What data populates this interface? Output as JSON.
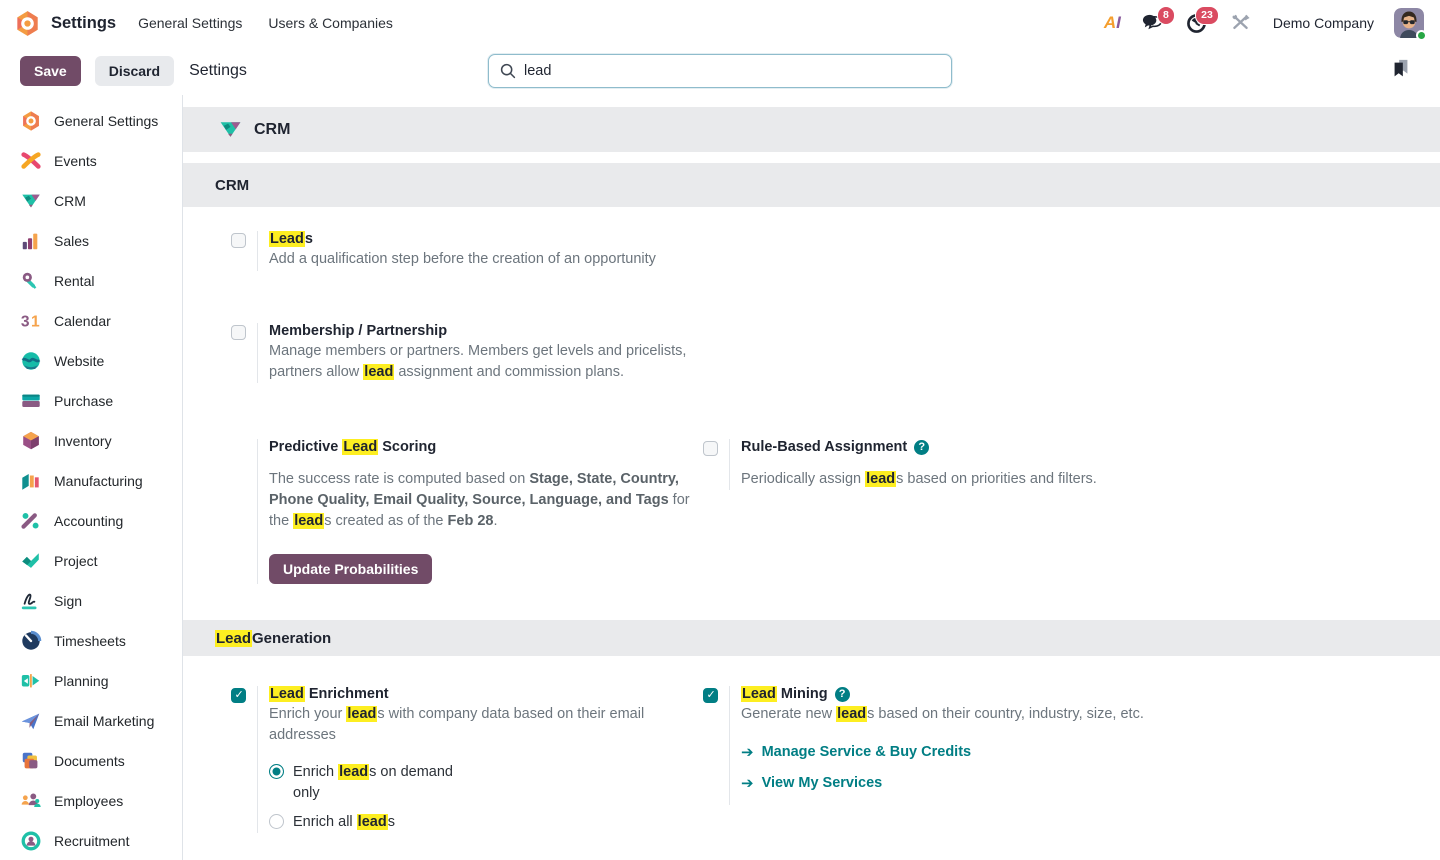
{
  "navbar": {
    "app_name": "Settings",
    "menu_items": [
      "General Settings",
      "Users & Companies"
    ],
    "ai_label": "AI",
    "messages_badge": "8",
    "activities_badge": "23",
    "company": "Demo Company"
  },
  "control_panel": {
    "save_label": "Save",
    "discard_label": "Discard",
    "breadcrumb": "Settings",
    "search_value": "lead"
  },
  "colors": {
    "accent": "#714B67",
    "teal": "#017e84",
    "highlight": "#fdee21",
    "badge_red": "#da4b61",
    "band_gray": "#e9eaec"
  },
  "sidebar": {
    "items": [
      {
        "label": "General Settings",
        "icon": "general-settings"
      },
      {
        "label": "Events",
        "icon": "events"
      },
      {
        "label": "CRM",
        "icon": "crm"
      },
      {
        "label": "Sales",
        "icon": "sales"
      },
      {
        "label": "Rental",
        "icon": "rental"
      },
      {
        "label": "Calendar",
        "icon": "calendar"
      },
      {
        "label": "Website",
        "icon": "website"
      },
      {
        "label": "Purchase",
        "icon": "purchase"
      },
      {
        "label": "Inventory",
        "icon": "inventory"
      },
      {
        "label": "Manufacturing",
        "icon": "manufacturing"
      },
      {
        "label": "Accounting",
        "icon": "accounting"
      },
      {
        "label": "Project",
        "icon": "project"
      },
      {
        "label": "Sign",
        "icon": "sign"
      },
      {
        "label": "Timesheets",
        "icon": "timesheets"
      },
      {
        "label": "Planning",
        "icon": "planning"
      },
      {
        "label": "Email Marketing",
        "icon": "email-marketing"
      },
      {
        "label": "Documents",
        "icon": "documents"
      },
      {
        "label": "Employees",
        "icon": "employees"
      },
      {
        "label": "Recruitment",
        "icon": "recruitment"
      }
    ]
  },
  "main": {
    "app_header_title": "CRM",
    "crm_section_title": "CRM",
    "leadgen_header": [
      {
        "t": "Lead",
        "hl": true
      },
      {
        "t": " Generation"
      }
    ],
    "leads": {
      "title": [
        {
          "t": "Lead",
          "hl": true
        },
        {
          "t": "s"
        }
      ],
      "desc": [
        {
          "t": "Add a qualification step before the creation of an opportunity"
        }
      ],
      "checked": false
    },
    "membership": {
      "title": [
        {
          "t": "Membership / Partnership"
        }
      ],
      "desc": [
        {
          "t": "Manage members or partners. Members get levels and pricelists, partners allow "
        },
        {
          "t": "lead",
          "hl": true
        },
        {
          "t": " assignment and commission plans."
        }
      ],
      "checked": false
    },
    "predictive": {
      "title": [
        {
          "t": "Predictive "
        },
        {
          "t": "Lead",
          "hl": true
        },
        {
          "t": " Scoring"
        }
      ],
      "desc": [
        {
          "t": "The success rate is computed based on "
        },
        {
          "t": "Stage, State, Country, Phone Quality, Email Quality, Source, Language, and Tags",
          "b": true
        },
        {
          "t": " for the "
        },
        {
          "t": "lead",
          "hl": true
        },
        {
          "t": "s created as of the "
        },
        {
          "t": "Feb 28",
          "b": true
        },
        {
          "t": "."
        }
      ],
      "button_label": "Update Probabilities"
    },
    "rule_based": {
      "title": [
        {
          "t": "Rule-Based Assignment"
        }
      ],
      "desc": [
        {
          "t": "Periodically assign "
        },
        {
          "t": "lead",
          "hl": true
        },
        {
          "t": "s based on priorities and filters."
        }
      ],
      "checked": false,
      "has_help": true
    },
    "enrichment": {
      "title": [
        {
          "t": "Lead",
          "hl": true
        },
        {
          "t": " Enrichment"
        }
      ],
      "desc": [
        {
          "t": "Enrich your "
        },
        {
          "t": "lead",
          "hl": true
        },
        {
          "t": "s with company data based on their email addresses"
        }
      ],
      "checked": true,
      "radio_on_demand": [
        {
          "t": "Enrich "
        },
        {
          "t": "lead",
          "hl": true
        },
        {
          "t": "s on demand only"
        }
      ],
      "radio_all": [
        {
          "t": "Enrich all "
        },
        {
          "t": "lead",
          "hl": true
        },
        {
          "t": "s"
        }
      ],
      "selected_radio": "on_demand"
    },
    "mining": {
      "title": [
        {
          "t": "Lead",
          "hl": true
        },
        {
          "t": " Mining"
        }
      ],
      "desc": [
        {
          "t": "Generate new "
        },
        {
          "t": "lead",
          "hl": true
        },
        {
          "t": "s based on their country, industry, size, etc."
        }
      ],
      "checked": true,
      "has_help": true,
      "links": [
        "Manage Service & Buy Credits",
        "View My Services"
      ]
    }
  }
}
